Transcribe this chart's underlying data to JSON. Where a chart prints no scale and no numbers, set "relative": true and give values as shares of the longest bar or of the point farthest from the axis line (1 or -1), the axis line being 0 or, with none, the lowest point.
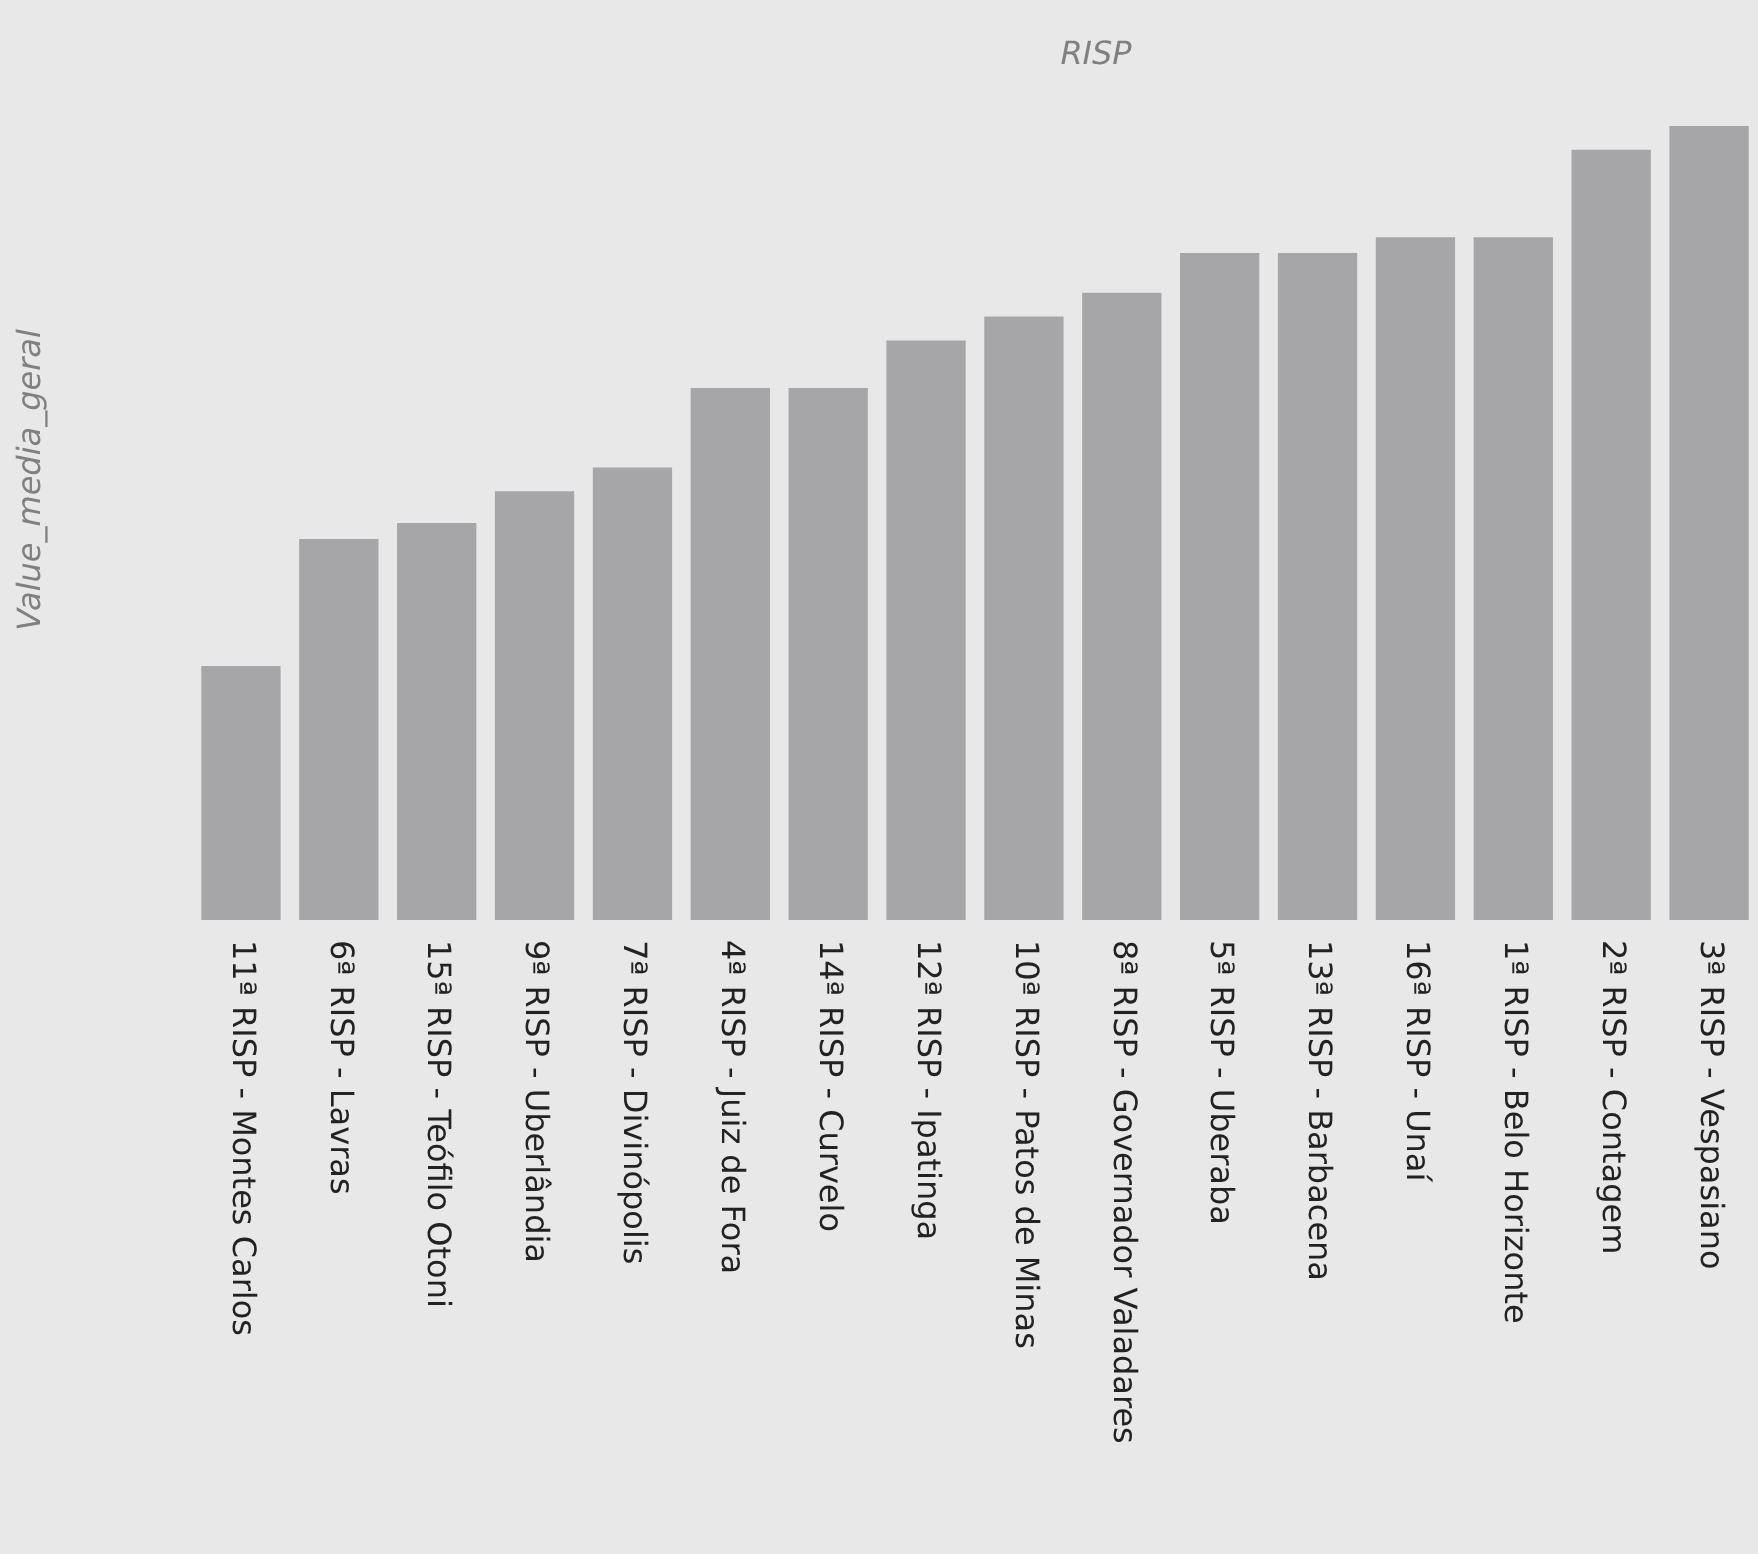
{
  "chart_data": {
    "type": "bar",
    "title": "RISP",
    "ylabel": "Value_media_geral",
    "relative": true,
    "color": "#a6a6a8",
    "categories": [
      "11ª RISP - Montes Carlos",
      "6ª RISP - Lavras",
      "15ª RISP - Teófilo Otoni",
      "9ª RISP - Uberlândia",
      "7ª RISP - Divinópolis",
      "4ª RISP - Juiz de Fora",
      "14ª RISP - Curvelo",
      "12ª RISP - Ipatinga",
      "10ª RISP - Patos de Minas",
      "8ª RISP - Governador Valadares",
      "5ª RISP - Uberaba",
      "13ª RISP - Barbacena",
      "16ª RISP - Unaí",
      "1ª RISP - Belo Horizonte",
      "2ª RISP - Contagem",
      "3ª RISP - Vespasiano"
    ],
    "values": [
      0.32,
      0.48,
      0.5,
      0.54,
      0.57,
      0.67,
      0.67,
      0.73,
      0.76,
      0.79,
      0.84,
      0.84,
      0.86,
      0.86,
      0.97,
      1
    ],
    "legend": false
  }
}
